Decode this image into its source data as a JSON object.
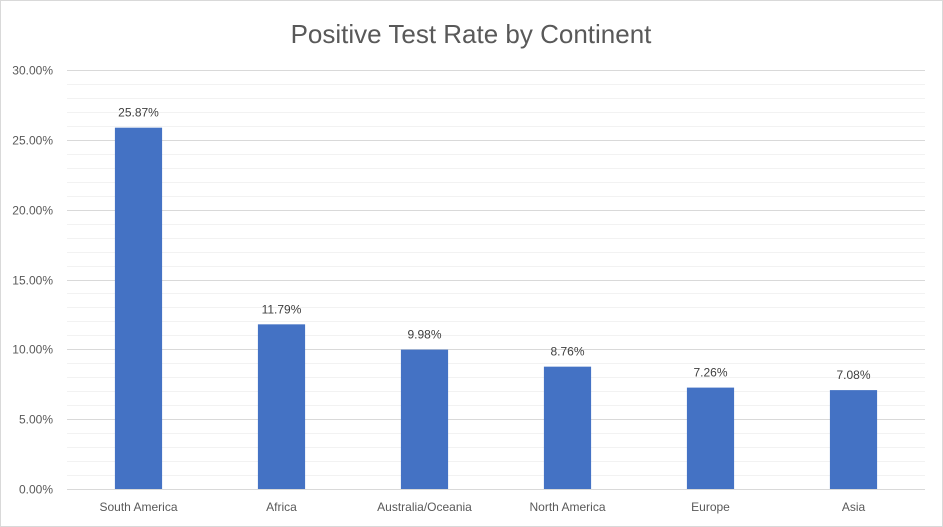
{
  "chart_data": {
    "type": "bar",
    "title": "Positive Test Rate by Continent",
    "xlabel": "",
    "ylabel": "",
    "categories": [
      "South America",
      "Africa",
      "Australia/Oceania",
      "North America",
      "Europe",
      "Asia"
    ],
    "values": [
      25.87,
      11.79,
      9.98,
      8.76,
      7.26,
      7.08
    ],
    "value_labels": [
      "25.87%",
      "11.79%",
      "9.98%",
      "8.76%",
      "7.26%",
      "7.08%"
    ],
    "ylim": [
      0,
      30
    ],
    "y_ticks": [
      0,
      5,
      10,
      15,
      20,
      25,
      30
    ],
    "y_tick_labels": [
      "0.00%",
      "5.00%",
      "10.00%",
      "15.00%",
      "20.00%",
      "25.00%",
      "30.00%"
    ],
    "grid": "major and minor horizontal gridlines",
    "legend": "none",
    "bar_color": "#4472c4",
    "gridline_color": "#d9d9d9",
    "minor_gridline_color": "#f2f2f2"
  }
}
